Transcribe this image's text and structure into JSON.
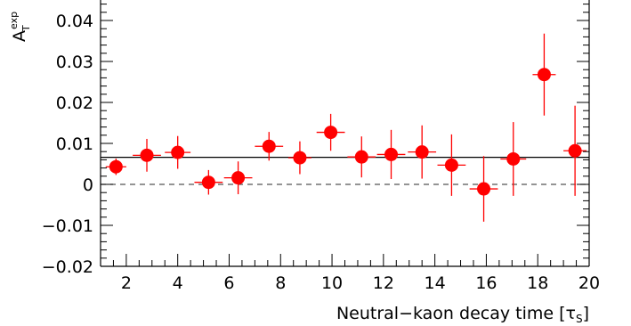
{
  "chart_data": {
    "type": "scatter",
    "xlabel": "Neutral−kaon decay time",
    "xunit": "[τ",
    "xunit_sub": "S",
    "xunit_close": "]",
    "ylabel": "A",
    "ylabel_sub": "T",
    "ylabel_sup": "exp",
    "xlim": [
      1,
      20
    ],
    "ylim": [
      -0.02,
      0.045
    ],
    "x_ticks": [
      2,
      4,
      6,
      8,
      10,
      12,
      14,
      16,
      18,
      20
    ],
    "x_tick_labels": [
      "2",
      "4",
      "6",
      "8",
      "10",
      "12",
      "14",
      "16",
      "18",
      "20"
    ],
    "y_ticks": [
      -0.02,
      -0.01,
      0,
      0.01,
      0.02,
      0.03,
      0.04
    ],
    "y_tick_labels": [
      "−0.02",
      "−0.01",
      "0",
      "0.01",
      "0.02",
      "0.03",
      "0.04"
    ],
    "grid": false,
    "fit_line": 0.0066,
    "zero_line": 0,
    "colors": {
      "points": "#ff0000",
      "fit": "#000000",
      "zero": "#555555"
    },
    "series": [
      {
        "x": [
          1.6,
          2.8,
          4.0,
          5.2,
          6.35,
          7.55,
          8.75,
          9.95,
          11.15,
          12.3,
          13.5,
          14.65,
          15.9,
          17.05,
          18.25,
          19.45
        ],
        "xerr": [
          0.4,
          0.55,
          0.5,
          0.55,
          0.55,
          0.55,
          0.45,
          0.55,
          0.55,
          0.55,
          0.55,
          0.55,
          0.55,
          0.5,
          0.45,
          0.45
        ],
        "y": [
          0.0043,
          0.0071,
          0.0078,
          0.0005,
          0.0016,
          0.0093,
          0.0065,
          0.0127,
          0.0067,
          0.0073,
          0.0079,
          0.0047,
          -0.0011,
          0.0062,
          0.0268,
          0.0082
        ],
        "yerr": [
          0.002,
          0.004,
          0.004,
          0.003,
          0.004,
          0.0035,
          0.004,
          0.0045,
          0.005,
          0.006,
          0.0065,
          0.0075,
          0.008,
          0.009,
          0.01,
          0.011
        ]
      }
    ]
  }
}
